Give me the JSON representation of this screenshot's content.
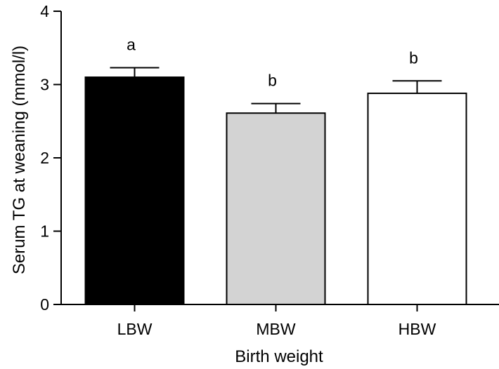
{
  "chart_data": {
    "type": "bar",
    "xlabel": "Birth weight",
    "ylabel": "Serum TG at weaning (mmol/l)",
    "categories": [
      "LBW",
      "MBW",
      "HBW"
    ],
    "values": [
      3.1,
      2.61,
      2.88
    ],
    "errors": [
      0.13,
      0.13,
      0.17
    ],
    "significance_labels": [
      "a",
      "b",
      "b"
    ],
    "bar_colors": [
      "#000000",
      "#d3d3d3",
      "#ffffff"
    ],
    "ylim": [
      0,
      4
    ],
    "yticks": [
      0,
      1,
      2,
      3,
      4
    ],
    "ytick_labels": [
      "0",
      "1",
      "2",
      "3",
      "4"
    ],
    "grid": false,
    "legend": "none"
  }
}
